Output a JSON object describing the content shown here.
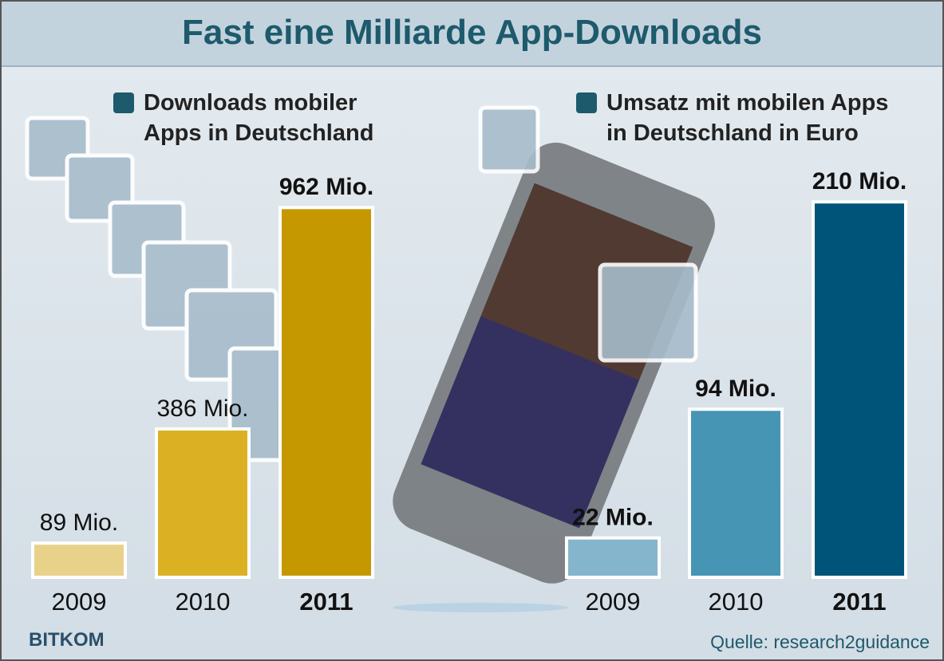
{
  "title": "Fast eine Milliarde App-Downloads",
  "logo": "BITKOM",
  "source": "Quelle: research2guidance",
  "chart_data": [
    {
      "type": "bar",
      "legend": "Downloads mobiler Apps in Deutschland",
      "legend_color": "#1d5a6c",
      "categories": [
        "2009",
        "2010",
        "2011"
      ],
      "values": [
        89,
        386,
        962
      ],
      "value_labels": [
        "89 Mio.",
        "386 Mio.",
        "962 Mio."
      ],
      "colors": [
        "#e8d28a",
        "#dbb123",
        "#c59800"
      ],
      "ylim": [
        0,
        1000
      ]
    },
    {
      "type": "bar",
      "legend": "Umsatz mit mobilen Apps in Deutschland in Euro",
      "legend_color": "#1d5a6c",
      "categories": [
        "2009",
        "2010",
        "2011"
      ],
      "values": [
        22,
        94,
        210
      ],
      "value_labels": [
        "22 Mio.",
        "94 Mio.",
        "210 Mio."
      ],
      "colors": [
        "#84b5cc",
        "#4695b5",
        "#005479"
      ],
      "ylim": [
        0,
        215
      ]
    }
  ]
}
